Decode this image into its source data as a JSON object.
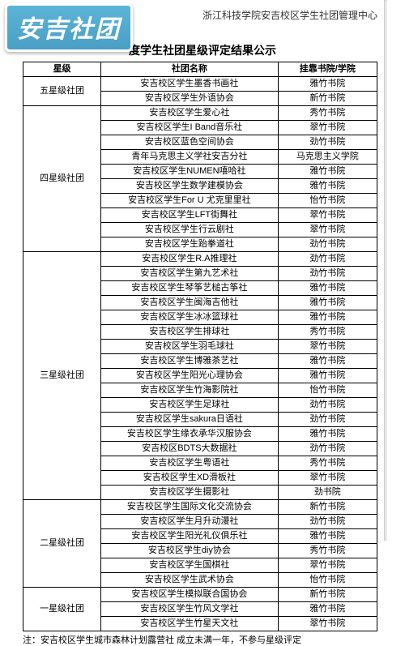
{
  "logo_text": "安吉社团",
  "top_right": "浙江科技学院安吉校区学生社团管理中心",
  "title": "度学生社团星级评定结果公示",
  "headers": [
    "星级",
    "社团名称",
    "挂靠书院/学院"
  ],
  "note": "注：安吉校区学生城市森林计划露营社 成立未满一年，不参与星级评定",
  "groups": [
    {
      "level": "五星级社团",
      "rows": [
        [
          "安吉校区学生墨香书画社",
          "雅竹书院"
        ],
        [
          "安吉校区学生外语协会",
          "新竹书院"
        ]
      ]
    },
    {
      "level": "四星级社团",
      "rows": [
        [
          "安吉校区学生爱心社",
          "秀竹书院"
        ],
        [
          "安吉校区学生I Band音乐社",
          "翠竹书院"
        ],
        [
          "安吉校区蓝色空间协会",
          "劲竹书院"
        ],
        [
          "青年马克思主义学社安吉分社",
          "马克思主义学院"
        ],
        [
          "安吉校区学生NUMEN嘻哈社",
          "雅竹书院"
        ],
        [
          "安吉校区学生数学建模协会",
          "雅竹书院"
        ],
        [
          "安吉校区学生For U 尤克里里社",
          "怡竹书院"
        ],
        [
          "安吉校区学生LFT街舞社",
          "翠竹书院"
        ],
        [
          "安吉校区学生行云剧社",
          "翠竹书院"
        ],
        [
          "安吉校区学生跆拳道社",
          "劲竹书院"
        ]
      ]
    },
    {
      "level": "三星级社团",
      "rows": [
        [
          "安吉校区学生R.A推理社",
          "劲竹书院"
        ],
        [
          "安吉校区学生第九艺术社",
          "劲竹书院"
        ],
        [
          "安吉校区学生琴筝艺槌古筝社",
          "雅竹书院"
        ],
        [
          "安吉校区学生闽海吉他社",
          "雅竹书院"
        ],
        [
          "安吉校区学生冰冰篮球社",
          "雅竹书院"
        ],
        [
          "安吉校区学生排球社",
          "秀竹书院"
        ],
        [
          "安吉校区学生羽毛球社",
          "翠竹书院"
        ],
        [
          "安吉校区学生博雅茶艺社",
          "雅竹书院"
        ],
        [
          "安吉校区学生阳光心理协会",
          "雅竹书院"
        ],
        [
          "安吉校区学生竹海影院社",
          "怡竹书院"
        ],
        [
          "安吉校区学生足球社",
          "劲竹书院"
        ],
        [
          "安吉校区学生sakura日语社",
          "劲竹书院"
        ],
        [
          "安吉校区学生缘衣承华汉服协会",
          "雅竹书院"
        ],
        [
          "安吉校区BDTS大数据社",
          "劲竹书院"
        ],
        [
          "安吉校区学生粤语社",
          "秀竹书院"
        ],
        [
          "安吉校区学生XD滑板社",
          "翠竹书院"
        ],
        [
          "安吉校区学生摄影社",
          "劲书院"
        ]
      ]
    },
    {
      "level": "二星级社团",
      "rows": [
        [
          "安吉校区学生国际文化交流协会",
          "新竹书院"
        ],
        [
          "安吉校区学生月升动漫社",
          "劲竹书院"
        ],
        [
          "安吉校区学生阳光礼仪俱乐社",
          "雅竹书院"
        ],
        [
          "安吉校区学生diy协会",
          "秀竹书院"
        ],
        [
          "安吉校区学生国棋社",
          "翠竹书院"
        ],
        [
          "安吉校区学生武术协会",
          "怡竹书院"
        ]
      ]
    },
    {
      "level": "一星级社团",
      "rows": [
        [
          "安吉校区学生模拟联合国协会",
          "新竹书院"
        ],
        [
          "安吉校区学生竹风文学社",
          "雅竹书院"
        ],
        [
          "安吉校区学生竹星天文社",
          "翠竹书院"
        ]
      ]
    }
  ]
}
